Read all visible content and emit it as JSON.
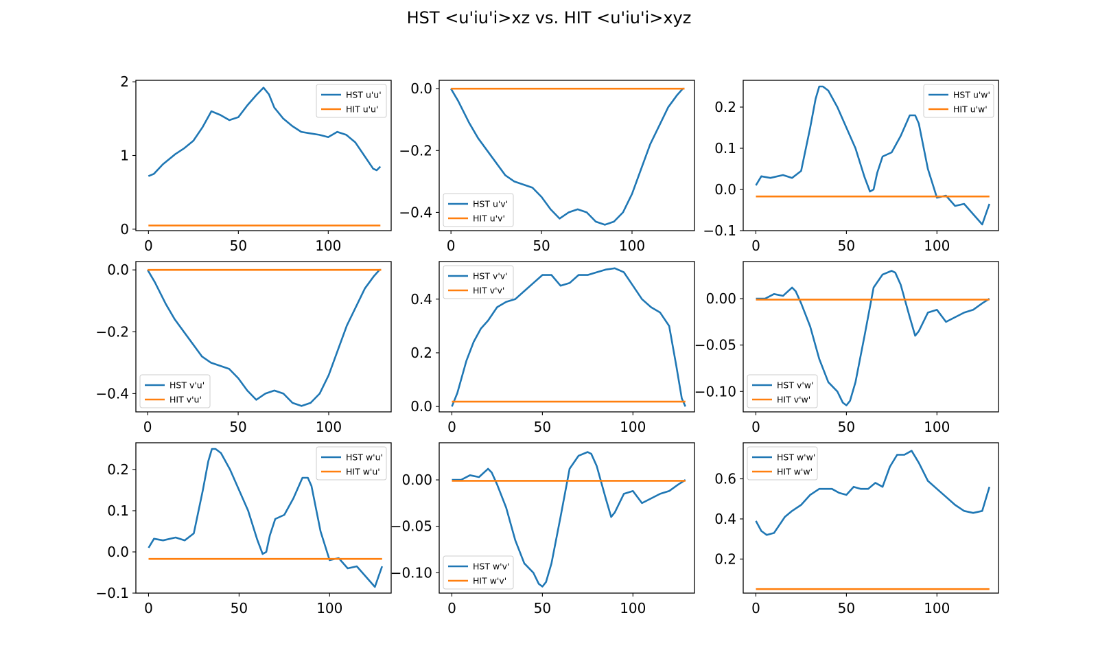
{
  "title": "HST <u'iu'i>xz vs. HIT <u'iu'i>xyz",
  "colors": {
    "hst": "#1f77b4",
    "hit": "#ff7f0e",
    "axis": "#000000"
  },
  "chart_data": [
    {
      "type": "line",
      "xlim": [
        -7,
        135
      ],
      "ylim": [
        -0.02,
        2.02
      ],
      "xticks": [
        0,
        50,
        100
      ],
      "xtick_labels": [
        "0",
        "50",
        "100"
      ],
      "yticks": [
        0,
        1,
        2
      ],
      "ytick_labels": [
        "0",
        "1",
        "2"
      ],
      "legend_loc": "upper right",
      "grid": false,
      "series": [
        {
          "name": "HST u'u'",
          "x": [
            0,
            3,
            8,
            15,
            20,
            25,
            30,
            35,
            40,
            45,
            50,
            55,
            60,
            64,
            67,
            70,
            75,
            80,
            85,
            90,
            95,
            100,
            105,
            110,
            115,
            120,
            125,
            127,
            129
          ],
          "y": [
            0.72,
            0.75,
            0.88,
            1.02,
            1.1,
            1.2,
            1.38,
            1.6,
            1.55,
            1.48,
            1.52,
            1.68,
            1.82,
            1.92,
            1.83,
            1.65,
            1.5,
            1.4,
            1.32,
            1.3,
            1.28,
            1.25,
            1.32,
            1.28,
            1.18,
            1.0,
            0.82,
            0.8,
            0.85
          ]
        },
        {
          "name": "HIT u'u'",
          "x": [
            0,
            129
          ],
          "y": [
            0.05,
            0.05
          ]
        }
      ]
    },
    {
      "type": "line",
      "xlim": [
        -6.5,
        134.5
      ],
      "ylim": [
        -0.459,
        0.027
      ],
      "xticks": [
        0,
        50,
        100
      ],
      "xtick_labels": [
        "0",
        "50",
        "100"
      ],
      "yticks": [
        0,
        -0.2,
        -0.4
      ],
      "ytick_labels": [
        "0.0",
        "−0.2",
        "−0.4"
      ],
      "legend_loc": "lower left",
      "grid": false,
      "series": [
        {
          "name": "HST u'v'",
          "x": [
            0,
            4,
            10,
            15,
            20,
            25,
            30,
            35,
            40,
            45,
            50,
            55,
            60,
            65,
            70,
            75,
            80,
            85,
            90,
            95,
            100,
            105,
            110,
            115,
            120,
            125,
            128,
            129
          ],
          "y": [
            0.0,
            -0.04,
            -0.11,
            -0.16,
            -0.2,
            -0.24,
            -0.28,
            -0.3,
            -0.31,
            -0.32,
            -0.35,
            -0.39,
            -0.42,
            -0.4,
            -0.39,
            -0.4,
            -0.43,
            -0.44,
            -0.43,
            -0.4,
            -0.34,
            -0.26,
            -0.18,
            -0.12,
            -0.06,
            -0.02,
            0.0,
            0.0
          ]
        },
        {
          "name": "HIT u'v'",
          "x": [
            0,
            129
          ],
          "y": [
            0.0,
            0.0
          ]
        }
      ]
    },
    {
      "type": "line",
      "xlim": [
        -7,
        134
      ],
      "ylim": [
        -0.1,
        0.265
      ],
      "xticks": [
        0,
        50,
        100
      ],
      "xtick_labels": [
        "0",
        "50",
        "100"
      ],
      "yticks": [
        -0.1,
        0.0,
        0.1,
        0.2
      ],
      "ytick_labels": [
        "−0.1",
        "0.0",
        "0.1",
        "0.2"
      ],
      "legend_loc": "upper right",
      "grid": false,
      "series": [
        {
          "name": "HST u'w'",
          "x": [
            0,
            3,
            8,
            15,
            20,
            25,
            30,
            33,
            35,
            37,
            40,
            45,
            50,
            55,
            60,
            63,
            65,
            67,
            70,
            75,
            80,
            85,
            88,
            90,
            95,
            100,
            105,
            110,
            115,
            120,
            125,
            127,
            129
          ],
          "y": [
            0.01,
            0.032,
            0.028,
            0.035,
            0.028,
            0.045,
            0.15,
            0.22,
            0.25,
            0.25,
            0.24,
            0.2,
            0.15,
            0.1,
            0.03,
            -0.005,
            0.0,
            0.04,
            0.08,
            0.09,
            0.13,
            0.18,
            0.18,
            0.16,
            0.05,
            -0.02,
            -0.015,
            -0.04,
            -0.035,
            -0.06,
            -0.085,
            -0.06,
            -0.035
          ]
        },
        {
          "name": "HIT u'w'",
          "x": [
            0,
            129
          ],
          "y": [
            -0.017,
            -0.017
          ]
        }
      ]
    },
    {
      "type": "line",
      "xlim": [
        -6.5,
        134.5
      ],
      "ylim": [
        -0.459,
        0.027
      ],
      "xticks": [
        0,
        50,
        100
      ],
      "xtick_labels": [
        "0",
        "50",
        "100"
      ],
      "yticks": [
        0,
        -0.2,
        -0.4
      ],
      "ytick_labels": [
        "0.0",
        "−0.2",
        "−0.4"
      ],
      "legend_loc": "lower left",
      "grid": false,
      "series": [
        {
          "name": "HST v'u'",
          "x": [
            0,
            4,
            10,
            15,
            20,
            25,
            30,
            35,
            40,
            45,
            50,
            55,
            60,
            65,
            70,
            75,
            80,
            85,
            90,
            95,
            100,
            105,
            110,
            115,
            120,
            125,
            128,
            129
          ],
          "y": [
            0.0,
            -0.04,
            -0.11,
            -0.16,
            -0.2,
            -0.24,
            -0.28,
            -0.3,
            -0.31,
            -0.32,
            -0.35,
            -0.39,
            -0.42,
            -0.4,
            -0.39,
            -0.4,
            -0.43,
            -0.44,
            -0.43,
            -0.4,
            -0.34,
            -0.26,
            -0.18,
            -0.12,
            -0.06,
            -0.02,
            0.0,
            0.0
          ]
        },
        {
          "name": "HIT v'u'",
          "x": [
            0,
            129
          ],
          "y": [
            0.0,
            0.0
          ]
        }
      ]
    },
    {
      "type": "line",
      "xlim": [
        -7,
        134
      ],
      "ylim": [
        -0.02,
        0.54
      ],
      "xticks": [
        0,
        50,
        100
      ],
      "xtick_labels": [
        "0",
        "50",
        "100"
      ],
      "yticks": [
        0,
        0.2,
        0.4
      ],
      "ytick_labels": [
        "0.0",
        "0.2",
        "0.4"
      ],
      "legend_loc": "upper left",
      "grid": false,
      "series": [
        {
          "name": "HST v'v'",
          "x": [
            0,
            3,
            8,
            12,
            16,
            20,
            25,
            30,
            35,
            40,
            45,
            50,
            55,
            60,
            65,
            70,
            75,
            80,
            85,
            90,
            95,
            100,
            105,
            110,
            115,
            120,
            124,
            127,
            129
          ],
          "y": [
            0.0,
            0.05,
            0.17,
            0.24,
            0.29,
            0.32,
            0.37,
            0.39,
            0.4,
            0.43,
            0.46,
            0.49,
            0.49,
            0.45,
            0.46,
            0.49,
            0.49,
            0.5,
            0.51,
            0.515,
            0.5,
            0.45,
            0.4,
            0.37,
            0.35,
            0.3,
            0.15,
            0.03,
            0.0
          ]
        },
        {
          "name": "HIT v'v'",
          "x": [
            0,
            129
          ],
          "y": [
            0.018,
            0.018
          ]
        }
      ]
    },
    {
      "type": "line",
      "xlim": [
        -7,
        134
      ],
      "ylim": [
        -0.122,
        0.04
      ],
      "xticks": [
        0,
        50,
        100
      ],
      "xtick_labels": [
        "0",
        "50",
        "100"
      ],
      "yticks": [
        0.0,
        -0.05,
        -0.1
      ],
      "ytick_labels": [
        "0.00",
        "−0.05",
        "−0.10"
      ],
      "legend_loc": "lower left",
      "grid": false,
      "series": [
        {
          "name": "HST v'w'",
          "x": [
            0,
            5,
            10,
            15,
            20,
            22,
            25,
            30,
            35,
            40,
            45,
            48,
            50,
            52,
            55,
            60,
            65,
            70,
            75,
            77,
            80,
            85,
            88,
            90,
            95,
            100,
            105,
            110,
            115,
            120,
            125,
            129
          ],
          "y": [
            0.0,
            0.0,
            0.005,
            0.003,
            0.012,
            0.008,
            -0.005,
            -0.03,
            -0.065,
            -0.09,
            -0.1,
            -0.112,
            -0.115,
            -0.11,
            -0.09,
            -0.04,
            0.012,
            0.026,
            0.03,
            0.028,
            0.015,
            -0.02,
            -0.04,
            -0.035,
            -0.015,
            -0.012,
            -0.025,
            -0.02,
            -0.015,
            -0.012,
            -0.005,
            0.0
          ]
        },
        {
          "name": "HIT v'w'",
          "x": [
            0,
            129
          ],
          "y": [
            -0.001,
            -0.001
          ]
        }
      ]
    },
    {
      "type": "line",
      "xlim": [
        -7,
        134
      ],
      "ylim": [
        -0.1,
        0.265
      ],
      "xticks": [
        0,
        50,
        100
      ],
      "xtick_labels": [
        "0",
        "50",
        "100"
      ],
      "yticks": [
        -0.1,
        0.0,
        0.1,
        0.2
      ],
      "ytick_labels": [
        "−0.1",
        "0.0",
        "0.1",
        "0.2"
      ],
      "legend_loc": "upper right",
      "grid": false,
      "series": [
        {
          "name": "HST w'u'",
          "x": [
            0,
            3,
            8,
            15,
            20,
            25,
            30,
            33,
            35,
            37,
            40,
            45,
            50,
            55,
            60,
            63,
            65,
            67,
            70,
            75,
            80,
            85,
            88,
            90,
            95,
            100,
            105,
            110,
            115,
            120,
            125,
            127,
            129
          ],
          "y": [
            0.01,
            0.032,
            0.028,
            0.035,
            0.028,
            0.045,
            0.15,
            0.22,
            0.25,
            0.25,
            0.24,
            0.2,
            0.15,
            0.1,
            0.03,
            -0.005,
            0.0,
            0.04,
            0.08,
            0.09,
            0.13,
            0.18,
            0.18,
            0.16,
            0.05,
            -0.02,
            -0.015,
            -0.04,
            -0.035,
            -0.06,
            -0.085,
            -0.06,
            -0.035
          ]
        },
        {
          "name": "HIT w'u'",
          "x": [
            0,
            129
          ],
          "y": [
            -0.017,
            -0.017
          ]
        }
      ]
    },
    {
      "type": "line",
      "xlim": [
        -7,
        134
      ],
      "ylim": [
        -0.122,
        0.04
      ],
      "xticks": [
        0,
        50,
        100
      ],
      "xtick_labels": [
        "0",
        "50",
        "100"
      ],
      "yticks": [
        0.0,
        -0.05,
        -0.1
      ],
      "ytick_labels": [
        "0.00",
        "−0.05",
        "−0.10"
      ],
      "legend_loc": "lower left",
      "grid": false,
      "series": [
        {
          "name": "HST w'v'",
          "x": [
            0,
            5,
            10,
            15,
            20,
            22,
            25,
            30,
            35,
            40,
            45,
            48,
            50,
            52,
            55,
            60,
            65,
            70,
            75,
            77,
            80,
            85,
            88,
            90,
            95,
            100,
            105,
            110,
            115,
            120,
            125,
            129
          ],
          "y": [
            0.0,
            0.0,
            0.005,
            0.003,
            0.012,
            0.008,
            -0.005,
            -0.03,
            -0.065,
            -0.09,
            -0.1,
            -0.112,
            -0.115,
            -0.11,
            -0.09,
            -0.04,
            0.012,
            0.026,
            0.03,
            0.028,
            0.015,
            -0.02,
            -0.04,
            -0.035,
            -0.015,
            -0.012,
            -0.025,
            -0.02,
            -0.015,
            -0.012,
            -0.005,
            0.0
          ]
        },
        {
          "name": "HIT w'v'",
          "x": [
            0,
            129
          ],
          "y": [
            -0.001,
            -0.001
          ]
        }
      ]
    },
    {
      "type": "line",
      "xlim": [
        -7,
        134
      ],
      "ylim": [
        0.03,
        0.78
      ],
      "xticks": [
        0,
        50,
        100
      ],
      "xtick_labels": [
        "0",
        "50",
        "100"
      ],
      "yticks": [
        0.2,
        0.4,
        0.6
      ],
      "ytick_labels": [
        "0.2",
        "0.4",
        "0.6"
      ],
      "legend_loc": "upper left",
      "grid": false,
      "series": [
        {
          "name": "HST w'w'",
          "x": [
            0,
            3,
            6,
            10,
            13,
            16,
            20,
            25,
            30,
            35,
            38,
            42,
            46,
            50,
            54,
            58,
            62,
            66,
            70,
            74,
            78,
            82,
            86,
            90,
            95,
            100,
            105,
            110,
            115,
            120,
            125,
            129
          ],
          "y": [
            0.39,
            0.34,
            0.32,
            0.33,
            0.37,
            0.41,
            0.44,
            0.47,
            0.52,
            0.55,
            0.55,
            0.55,
            0.53,
            0.52,
            0.56,
            0.55,
            0.55,
            0.58,
            0.56,
            0.66,
            0.72,
            0.72,
            0.74,
            0.68,
            0.59,
            0.55,
            0.51,
            0.47,
            0.44,
            0.43,
            0.44,
            0.56
          ]
        },
        {
          "name": "HIT w'w'",
          "x": [
            0,
            129
          ],
          "y": [
            0.05,
            0.05
          ]
        }
      ]
    }
  ]
}
